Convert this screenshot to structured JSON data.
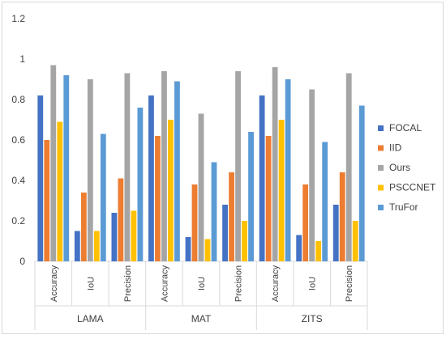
{
  "chart_data": {
    "type": "bar",
    "groups": [
      "LAMA",
      "MAT",
      "ZITS"
    ],
    "metrics": [
      "Accuracy",
      "IoU",
      "Precision"
    ],
    "categories": [
      "LAMA Accuracy",
      "LAMA IoU",
      "LAMA Precision",
      "MAT Accuracy",
      "MAT IoU",
      "MAT Precision",
      "ZITS Accuracy",
      "ZITS IoU",
      "ZITS Precision"
    ],
    "series": [
      {
        "name": "FOCAL",
        "color": "#4472C4",
        "values": [
          0.82,
          0.15,
          0.24,
          0.82,
          0.12,
          0.28,
          0.82,
          0.13,
          0.28
        ]
      },
      {
        "name": "IID",
        "color": "#ED7D31",
        "values": [
          0.6,
          0.34,
          0.41,
          0.62,
          0.38,
          0.44,
          0.62,
          0.38,
          0.44
        ]
      },
      {
        "name": "Ours",
        "color": "#A5A5A5",
        "values": [
          0.97,
          0.9,
          0.93,
          0.94,
          0.73,
          0.94,
          0.96,
          0.85,
          0.93
        ]
      },
      {
        "name": "PSCCNET",
        "color": "#FFC000",
        "values": [
          0.69,
          0.15,
          0.25,
          0.7,
          0.11,
          0.2,
          0.7,
          0.1,
          0.2
        ]
      },
      {
        "name": "TruFor",
        "color": "#5B9BD5",
        "values": [
          0.92,
          0.63,
          0.76,
          0.89,
          0.49,
          0.64,
          0.9,
          0.59,
          0.77
        ]
      }
    ],
    "ylim": [
      0,
      1.2
    ],
    "yticks": [
      "0",
      "0.2",
      "0.4",
      "0.6",
      "0.8",
      "1",
      "1.2"
    ],
    "grid": false,
    "legend_position": "right",
    "title": "",
    "xlabel": "",
    "ylabel": ""
  }
}
